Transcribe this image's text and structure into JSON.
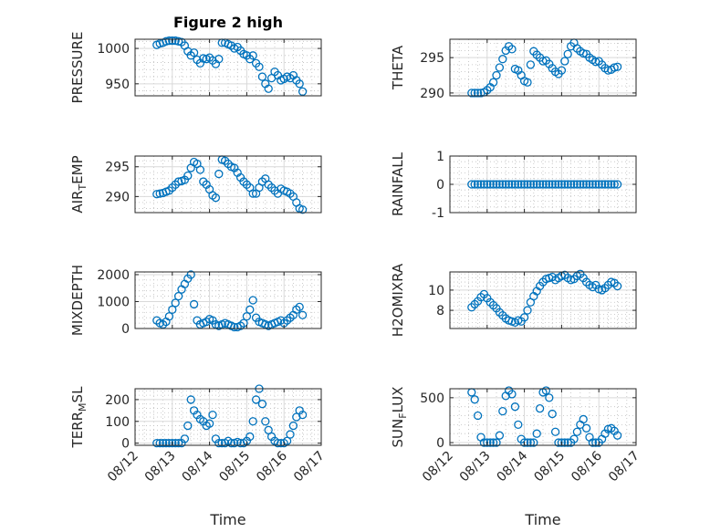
{
  "figure": {
    "title": "Figure 2 high",
    "xlabel": "Time",
    "marker_color": "#0072bd",
    "marker": "circle",
    "grid": "on, major and minor"
  },
  "chart_data": [
    {
      "type": "scatter",
      "title": "Figure 2 high",
      "ylabel": "PRESSURE",
      "xlim": [
        "08/12",
        "08/17"
      ],
      "ylim": [
        933,
        1013
      ],
      "yticks": [
        950,
        1000
      ],
      "xticks": [
        "08/12",
        "08/13",
        "08/14",
        "08/15",
        "08/16",
        "08/17"
      ],
      "x": [
        "08/12 14:00",
        "08/12 16:00",
        "08/12 18:00",
        "08/12 20:00",
        "08/12 22:00",
        "08/13 00:00",
        "08/13 02:00",
        "08/13 04:00",
        "08/13 06:00",
        "08/13 08:00",
        "08/13 10:00",
        "08/13 12:00",
        "08/13 14:00",
        "08/13 16:00",
        "08/13 18:00",
        "08/13 20:00",
        "08/13 22:00",
        "08/14 00:00",
        "08/14 02:00",
        "08/14 04:00",
        "08/14 06:00",
        "08/14 08:00",
        "08/14 10:00",
        "08/14 12:00",
        "08/14 14:00",
        "08/14 16:00",
        "08/14 18:00",
        "08/14 20:00",
        "08/14 22:00",
        "08/15 00:00",
        "08/15 02:00",
        "08/15 04:00",
        "08/15 06:00",
        "08/15 08:00",
        "08/15 10:00",
        "08/15 12:00",
        "08/15 14:00",
        "08/15 16:00",
        "08/15 18:00",
        "08/15 20:00",
        "08/15 22:00",
        "08/16 00:00",
        "08/16 02:00",
        "08/16 04:00",
        "08/16 06:00",
        "08/16 08:00",
        "08/16 10:00",
        "08/16 12:00"
      ],
      "y": [
        1005,
        1007,
        1008,
        1010,
        1011,
        1011,
        1011,
        1010,
        1009,
        1004,
        996,
        990,
        994,
        984,
        979,
        986,
        985,
        987,
        983,
        978,
        985,
        1008,
        1008,
        1006,
        1004,
        1000,
        1002,
        997,
        992,
        990,
        985,
        990,
        979,
        974,
        960,
        950,
        943,
        958,
        967,
        962,
        955,
        957,
        960,
        958,
        962,
        955,
        950,
        939
      ]
    },
    {
      "type": "scatter",
      "ylabel": "THETA",
      "xlim": [
        "08/12",
        "08/17"
      ],
      "ylim": [
        289.6,
        297.6
      ],
      "yticks": [
        290,
        295
      ],
      "xticks": [
        "08/12",
        "08/13",
        "08/14",
        "08/15",
        "08/16",
        "08/17"
      ],
      "x": [
        "08/12 14:00",
        "08/12 16:00",
        "08/12 18:00",
        "08/12 20:00",
        "08/12 22:00",
        "08/13 00:00",
        "08/13 02:00",
        "08/13 04:00",
        "08/13 06:00",
        "08/13 08:00",
        "08/13 10:00",
        "08/13 12:00",
        "08/13 14:00",
        "08/13 16:00",
        "08/13 18:00",
        "08/13 20:00",
        "08/13 22:00",
        "08/14 00:00",
        "08/14 02:00",
        "08/14 04:00",
        "08/14 06:00",
        "08/14 08:00",
        "08/14 10:00",
        "08/14 12:00",
        "08/14 14:00",
        "08/14 16:00",
        "08/14 18:00",
        "08/14 20:00",
        "08/14 22:00",
        "08/15 00:00",
        "08/15 02:00",
        "08/15 04:00",
        "08/15 06:00",
        "08/15 08:00",
        "08/15 10:00",
        "08/15 12:00",
        "08/15 14:00",
        "08/15 16:00",
        "08/15 18:00",
        "08/15 20:00",
        "08/15 22:00",
        "08/16 00:00",
        "08/16 02:00",
        "08/16 04:00",
        "08/16 06:00",
        "08/16 08:00",
        "08/16 10:00",
        "08/16 12:00"
      ],
      "y": [
        290,
        290,
        290,
        290,
        290.1,
        290.4,
        290.8,
        291.5,
        292.5,
        293.6,
        294.8,
        296,
        296.6,
        296.2,
        293.4,
        293.2,
        292.5,
        291.7,
        291.5,
        294,
        295.9,
        295.4,
        295,
        294.5,
        294.6,
        294.1,
        293.5,
        293,
        292.7,
        293.2,
        294.5,
        295.5,
        296.6,
        297.1,
        296.3,
        295.9,
        295.6,
        295.5,
        295,
        294.7,
        294.4,
        294.5,
        294,
        293.5,
        293.2,
        293.3,
        293.6,
        293.7
      ]
    },
    {
      "type": "scatter",
      "ylabel": "AIR_TEMP",
      "xlim": [
        "08/12",
        "08/17"
      ],
      "ylim": [
        287.3,
        296.8
      ],
      "yticks": [
        290,
        295
      ],
      "xticks": [
        "08/12",
        "08/13",
        "08/14",
        "08/15",
        "08/16",
        "08/17"
      ],
      "x": [
        "08/12 14:00",
        "08/12 16:00",
        "08/12 18:00",
        "08/12 20:00",
        "08/12 22:00",
        "08/13 00:00",
        "08/13 02:00",
        "08/13 04:00",
        "08/13 06:00",
        "08/13 08:00",
        "08/13 10:00",
        "08/13 12:00",
        "08/13 14:00",
        "08/13 16:00",
        "08/13 18:00",
        "08/13 20:00",
        "08/13 22:00",
        "08/14 00:00",
        "08/14 02:00",
        "08/14 04:00",
        "08/14 06:00",
        "08/14 08:00",
        "08/14 10:00",
        "08/14 12:00",
        "08/14 14:00",
        "08/14 16:00",
        "08/14 18:00",
        "08/14 20:00",
        "08/14 22:00",
        "08/15 00:00",
        "08/15 02:00",
        "08/15 04:00",
        "08/15 06:00",
        "08/15 08:00",
        "08/15 10:00",
        "08/15 12:00",
        "08/15 14:00",
        "08/15 16:00",
        "08/15 18:00",
        "08/15 20:00",
        "08/15 22:00",
        "08/16 00:00",
        "08/16 02:00",
        "08/16 04:00",
        "08/16 06:00",
        "08/16 08:00",
        "08/16 10:00",
        "08/16 12:00"
      ],
      "y": [
        290.4,
        290.5,
        290.6,
        290.8,
        291,
        291.5,
        292,
        292.5,
        292.6,
        292.8,
        293.5,
        294.8,
        295.8,
        295.5,
        294.5,
        292.5,
        292,
        291.2,
        290.2,
        289.8,
        293.8,
        296.2,
        296,
        295.5,
        295,
        294.8,
        294,
        293.2,
        292.5,
        292,
        291.5,
        290.5,
        290.5,
        291.5,
        292.5,
        293,
        292,
        291.5,
        291,
        290.5,
        291.3,
        291,
        290.8,
        290.5,
        290,
        289,
        288,
        287.8
      ]
    },
    {
      "type": "scatter",
      "ylabel": "RAINFALL",
      "xlim": [
        "08/12",
        "08/17"
      ],
      "ylim": [
        -1,
        1
      ],
      "yticks": [
        -1,
        0,
        1
      ],
      "xticks": [
        "08/12",
        "08/13",
        "08/14",
        "08/15",
        "08/16",
        "08/17"
      ],
      "x": [
        "08/12 14:00",
        "08/12 16:00",
        "08/12 18:00",
        "08/12 20:00",
        "08/12 22:00",
        "08/13 00:00",
        "08/13 02:00",
        "08/13 04:00",
        "08/13 06:00",
        "08/13 08:00",
        "08/13 10:00",
        "08/13 12:00",
        "08/13 14:00",
        "08/13 16:00",
        "08/13 18:00",
        "08/13 20:00",
        "08/13 22:00",
        "08/14 00:00",
        "08/14 02:00",
        "08/14 04:00",
        "08/14 06:00",
        "08/14 08:00",
        "08/14 10:00",
        "08/14 12:00",
        "08/14 14:00",
        "08/14 16:00",
        "08/14 18:00",
        "08/14 20:00",
        "08/14 22:00",
        "08/15 00:00",
        "08/15 02:00",
        "08/15 04:00",
        "08/15 06:00",
        "08/15 08:00",
        "08/15 10:00",
        "08/15 12:00",
        "08/15 14:00",
        "08/15 16:00",
        "08/15 18:00",
        "08/15 20:00",
        "08/15 22:00",
        "08/16 00:00",
        "08/16 02:00",
        "08/16 04:00",
        "08/16 06:00",
        "08/16 08:00",
        "08/16 10:00",
        "08/16 12:00"
      ],
      "y": [
        0,
        0,
        0,
        0,
        0,
        0,
        0,
        0,
        0,
        0,
        0,
        0,
        0,
        0,
        0,
        0,
        0,
        0,
        0,
        0,
        0,
        0,
        0,
        0,
        0,
        0,
        0,
        0,
        0,
        0,
        0,
        0,
        0,
        0,
        0,
        0,
        0,
        0,
        0,
        0,
        0,
        0,
        0,
        0,
        0,
        0,
        0,
        0
      ]
    },
    {
      "type": "scatter",
      "ylabel": "MIXDEPTH",
      "xlim": [
        "08/12",
        "08/17"
      ],
      "ylim": [
        0,
        2100
      ],
      "yticks": [
        0,
        1000,
        2000
      ],
      "xticks": [
        "08/12",
        "08/13",
        "08/14",
        "08/15",
        "08/16",
        "08/17"
      ],
      "x": [
        "08/12 14:00",
        "08/12 16:00",
        "08/12 18:00",
        "08/12 20:00",
        "08/12 22:00",
        "08/13 00:00",
        "08/13 02:00",
        "08/13 04:00",
        "08/13 06:00",
        "08/13 08:00",
        "08/13 10:00",
        "08/13 12:00",
        "08/13 14:00",
        "08/13 16:00",
        "08/13 18:00",
        "08/13 20:00",
        "08/13 22:00",
        "08/14 00:00",
        "08/14 02:00",
        "08/14 04:00",
        "08/14 06:00",
        "08/14 08:00",
        "08/14 10:00",
        "08/14 12:00",
        "08/14 14:00",
        "08/14 16:00",
        "08/14 18:00",
        "08/14 20:00",
        "08/14 22:00",
        "08/15 00:00",
        "08/15 02:00",
        "08/15 04:00",
        "08/15 06:00",
        "08/15 08:00",
        "08/15 10:00",
        "08/15 12:00",
        "08/15 14:00",
        "08/15 16:00",
        "08/15 18:00",
        "08/15 20:00",
        "08/15 22:00",
        "08/16 00:00",
        "08/16 02:00",
        "08/16 04:00",
        "08/16 06:00",
        "08/16 08:00",
        "08/16 10:00",
        "08/16 12:00"
      ],
      "y": [
        300,
        200,
        150,
        250,
        450,
        700,
        950,
        1200,
        1450,
        1650,
        1850,
        2000,
        900,
        300,
        150,
        200,
        250,
        350,
        300,
        150,
        100,
        150,
        200,
        150,
        100,
        50,
        50,
        100,
        200,
        450,
        700,
        1050,
        400,
        250,
        200,
        150,
        100,
        150,
        200,
        250,
        300,
        200,
        300,
        400,
        500,
        700,
        800,
        500
      ]
    },
    {
      "type": "scatter",
      "ylabel": "H2OMIXRA",
      "xlim": [
        "08/12",
        "08/17"
      ],
      "ylim": [
        6.2,
        11.8
      ],
      "yticks": [
        8,
        10
      ],
      "xticks": [
        "08/12",
        "08/13",
        "08/14",
        "08/15",
        "08/16",
        "08/17"
      ],
      "x": [
        "08/12 14:00",
        "08/12 16:00",
        "08/12 18:00",
        "08/12 20:00",
        "08/12 22:00",
        "08/13 00:00",
        "08/13 02:00",
        "08/13 04:00",
        "08/13 06:00",
        "08/13 08:00",
        "08/13 10:00",
        "08/13 12:00",
        "08/13 14:00",
        "08/13 16:00",
        "08/13 18:00",
        "08/13 20:00",
        "08/13 22:00",
        "08/14 00:00",
        "08/14 02:00",
        "08/14 04:00",
        "08/14 06:00",
        "08/14 08:00",
        "08/14 10:00",
        "08/14 12:00",
        "08/14 14:00",
        "08/14 16:00",
        "08/14 18:00",
        "08/14 20:00",
        "08/14 22:00",
        "08/15 00:00",
        "08/15 02:00",
        "08/15 04:00",
        "08/15 06:00",
        "08/15 08:00",
        "08/15 10:00",
        "08/15 12:00",
        "08/15 14:00",
        "08/15 16:00",
        "08/15 18:00",
        "08/15 20:00",
        "08/15 22:00",
        "08/16 00:00",
        "08/16 02:00",
        "08/16 04:00",
        "08/16 06:00",
        "08/16 08:00",
        "08/16 10:00",
        "08/16 12:00"
      ],
      "y": [
        8.3,
        8.6,
        8.9,
        9.3,
        9.6,
        9.2,
        8.8,
        8.5,
        8.2,
        7.8,
        7.5,
        7.2,
        7,
        6.9,
        6.8,
        7,
        6.9,
        7.3,
        8,
        8.8,
        9.4,
        9.9,
        10.4,
        10.8,
        11.1,
        11.2,
        11.3,
        11,
        11.2,
        11.4,
        11.5,
        11.2,
        11,
        11.1,
        11.4,
        11.6,
        11.2,
        10.8,
        10.5,
        10.3,
        10.5,
        10.1,
        10,
        10.2,
        10.5,
        10.8,
        10.7,
        10.4
      ]
    },
    {
      "type": "scatter",
      "ylabel": "TERR_MSL",
      "xlim": [
        "08/12",
        "08/17"
      ],
      "ylim": [
        -10,
        250
      ],
      "yticks": [
        0,
        100,
        200
      ],
      "xticks": [
        "08/12",
        "08/13",
        "08/14",
        "08/15",
        "08/16",
        "08/17"
      ],
      "x": [
        "08/12 14:00",
        "08/12 16:00",
        "08/12 18:00",
        "08/12 20:00",
        "08/12 22:00",
        "08/13 00:00",
        "08/13 02:00",
        "08/13 04:00",
        "08/13 06:00",
        "08/13 08:00",
        "08/13 10:00",
        "08/13 12:00",
        "08/13 14:00",
        "08/13 16:00",
        "08/13 18:00",
        "08/13 20:00",
        "08/13 22:00",
        "08/14 00:00",
        "08/14 02:00",
        "08/14 04:00",
        "08/14 06:00",
        "08/14 08:00",
        "08/14 10:00",
        "08/14 12:00",
        "08/14 14:00",
        "08/14 16:00",
        "08/14 18:00",
        "08/14 20:00",
        "08/14 22:00",
        "08/15 00:00",
        "08/15 02:00",
        "08/15 04:00",
        "08/15 06:00",
        "08/15 08:00",
        "08/15 10:00",
        "08/15 12:00",
        "08/15 14:00",
        "08/15 16:00",
        "08/15 18:00",
        "08/15 20:00",
        "08/15 22:00",
        "08/16 00:00",
        "08/16 02:00",
        "08/16 04:00",
        "08/16 06:00",
        "08/16 08:00",
        "08/16 10:00",
        "08/16 12:00"
      ],
      "y": [
        0,
        0,
        0,
        0,
        0,
        0,
        0,
        0,
        0,
        20,
        80,
        200,
        150,
        130,
        110,
        100,
        80,
        90,
        130,
        20,
        0,
        0,
        0,
        10,
        0,
        0,
        5,
        0,
        0,
        10,
        30,
        100,
        200,
        250,
        180,
        100,
        60,
        30,
        10,
        0,
        0,
        0,
        10,
        40,
        80,
        120,
        150,
        130
      ]
    },
    {
      "type": "scatter",
      "ylabel": "SUN_FLUX",
      "xlim": [
        "08/12",
        "08/17"
      ],
      "ylim": [
        -30,
        600
      ],
      "yticks": [
        0,
        500
      ],
      "xticks": [
        "08/12",
        "08/13",
        "08/14",
        "08/15",
        "08/16",
        "08/17"
      ],
      "x": [
        "08/12 14:00",
        "08/12 16:00",
        "08/12 18:00",
        "08/12 20:00",
        "08/12 22:00",
        "08/13 00:00",
        "08/13 02:00",
        "08/13 04:00",
        "08/13 06:00",
        "08/13 08:00",
        "08/13 10:00",
        "08/13 12:00",
        "08/13 14:00",
        "08/13 16:00",
        "08/13 18:00",
        "08/13 20:00",
        "08/13 22:00",
        "08/14 00:00",
        "08/14 02:00",
        "08/14 04:00",
        "08/14 06:00",
        "08/14 08:00",
        "08/14 10:00",
        "08/14 12:00",
        "08/14 14:00",
        "08/14 16:00",
        "08/14 18:00",
        "08/14 20:00",
        "08/14 22:00",
        "08/15 00:00",
        "08/15 02:00",
        "08/15 04:00",
        "08/15 06:00",
        "08/15 08:00",
        "08/15 10:00",
        "08/15 12:00",
        "08/15 14:00",
        "08/15 16:00",
        "08/15 18:00",
        "08/15 20:00",
        "08/15 22:00",
        "08/16 00:00",
        "08/16 02:00",
        "08/16 04:00",
        "08/16 06:00",
        "08/16 08:00",
        "08/16 10:00",
        "08/16 12:00"
      ],
      "y": [
        560,
        480,
        300,
        60,
        0,
        0,
        0,
        0,
        0,
        80,
        350,
        520,
        580,
        540,
        400,
        200,
        40,
        0,
        0,
        0,
        0,
        100,
        380,
        560,
        580,
        500,
        320,
        120,
        0,
        0,
        0,
        0,
        0,
        40,
        120,
        200,
        260,
        160,
        60,
        0,
        0,
        0,
        40,
        100,
        150,
        160,
        130,
        80
      ]
    }
  ]
}
